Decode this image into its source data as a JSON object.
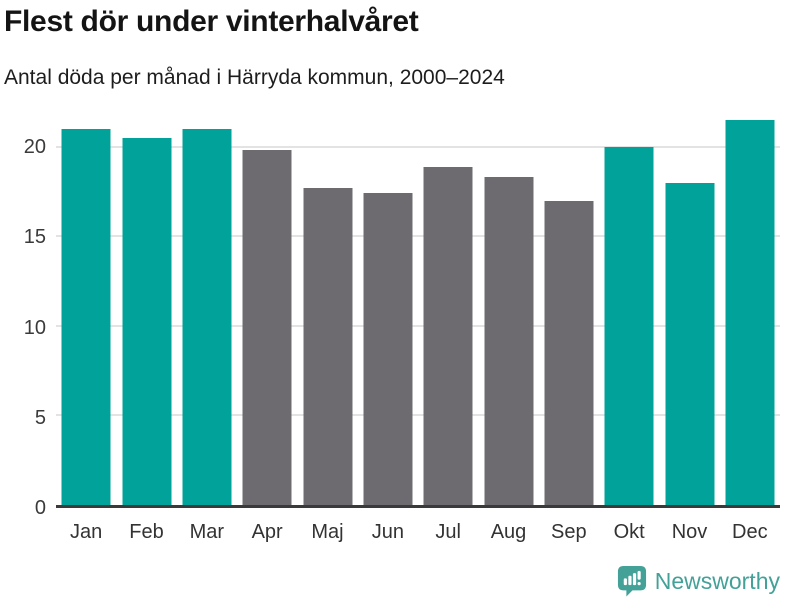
{
  "chart_data": {
    "type": "bar",
    "title": "Flest dör under vinterhalvåret",
    "subtitle": "Antal döda per månad i Härryda kommun, 2000–2024",
    "categories": [
      "Jan",
      "Feb",
      "Mar",
      "Apr",
      "Maj",
      "Jun",
      "Jul",
      "Aug",
      "Sep",
      "Okt",
      "Nov",
      "Dec"
    ],
    "values": [
      21.0,
      20.5,
      21.0,
      19.8,
      17.7,
      17.4,
      18.9,
      18.3,
      17.0,
      20.0,
      18.0,
      21.5
    ],
    "bar_groups": [
      "winter",
      "winter",
      "winter",
      "summer",
      "summer",
      "summer",
      "summer",
      "summer",
      "summer",
      "winter",
      "winter",
      "winter"
    ],
    "colors": {
      "winter": "#00a299",
      "summer": "#6d6b70"
    },
    "xlabel": "",
    "ylabel": "",
    "ylim": [
      0,
      22
    ],
    "yticks": [
      0,
      5,
      10,
      15,
      20
    ],
    "grid": "horizontal-only",
    "legend": "none",
    "axis_color": "#3a3a3a",
    "gridline_color": "#e3e3e3",
    "tick_label_color": "#3a3a3a"
  },
  "footer": {
    "brand": "Newsworthy",
    "logo_icon": "speech-bubble-bar-chart-icon",
    "brand_color": "#43a198"
  }
}
